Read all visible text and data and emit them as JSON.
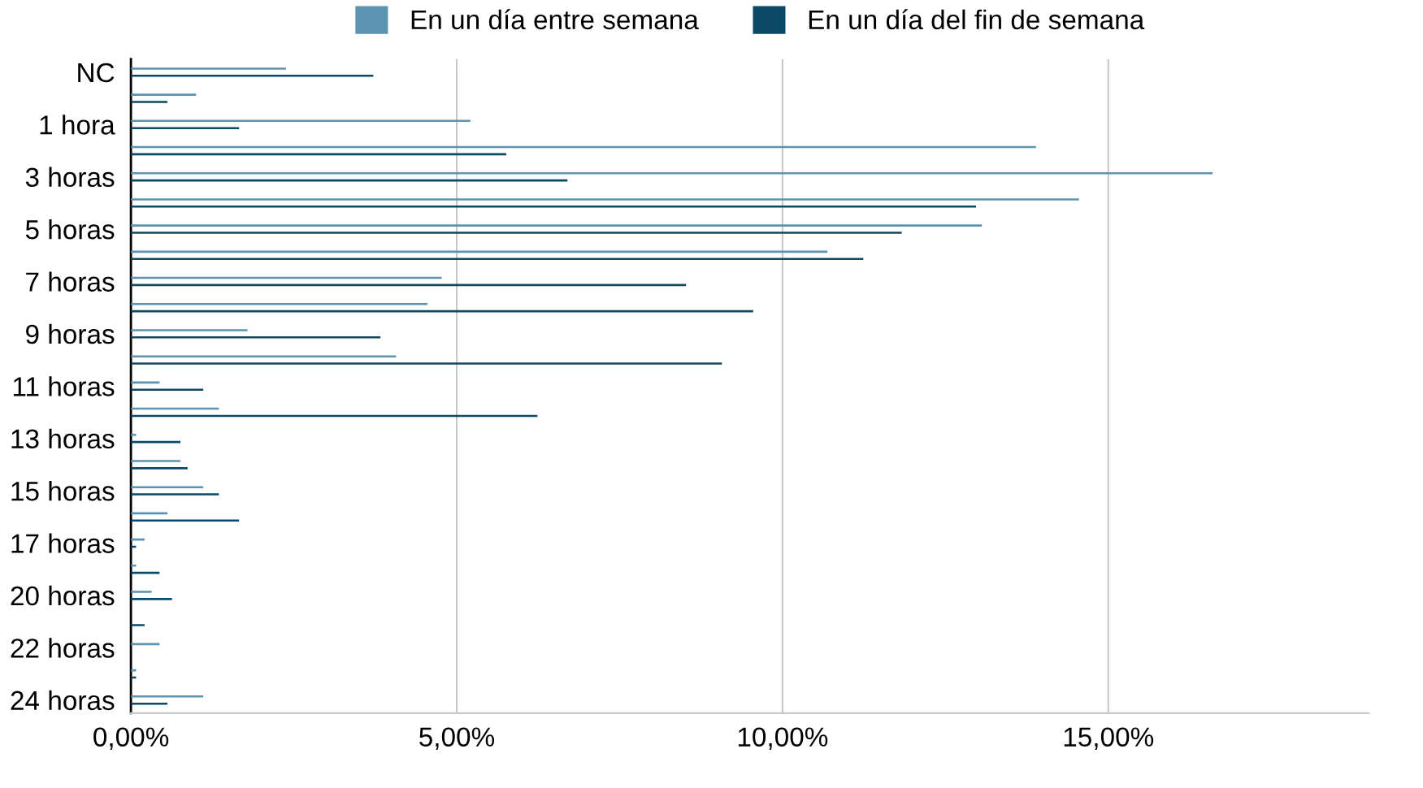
{
  "chart_data": {
    "type": "bar",
    "orientation": "horizontal",
    "categories": [
      "NC",
      null,
      "1 hora",
      null,
      "3 horas",
      null,
      "5 horas",
      null,
      "7 horas",
      null,
      "9 horas",
      null,
      "11 horas",
      null,
      "13 horas",
      null,
      "15 horas",
      null,
      "17 horas",
      null,
      "20 horas",
      null,
      "22 horas",
      null,
      "24 horas"
    ],
    "series": [
      {
        "name": "En un día entre semana",
        "color": "#5b93b0",
        "values": [
          2.38,
          1.0,
          5.21,
          13.89,
          16.6,
          14.55,
          13.06,
          10.69,
          4.77,
          4.55,
          1.79,
          4.07,
          0.44,
          1.35,
          0.08,
          0.76,
          1.11,
          0.56,
          0.21,
          0.08,
          0.32,
          0.0,
          0.44,
          0.08,
          1.11
        ]
      },
      {
        "name": "En un día del fin de semana",
        "color": "#0b4a66",
        "values": [
          3.72,
          0.56,
          1.66,
          5.76,
          6.7,
          12.97,
          11.83,
          11.24,
          8.52,
          9.55,
          3.83,
          9.07,
          1.11,
          6.24,
          0.76,
          0.87,
          1.35,
          1.66,
          0.08,
          0.44,
          0.63,
          0.21,
          0.0,
          0.08,
          0.56
        ]
      }
    ],
    "xlim": [
      0,
      19
    ],
    "xticks": [
      {
        "value": 0,
        "label": "0,00%"
      },
      {
        "value": 5,
        "label": "5,00%"
      },
      {
        "value": 10,
        "label": "10,00%"
      },
      {
        "value": 15,
        "label": "15,00%"
      }
    ],
    "grid": "x",
    "legend": "top"
  }
}
